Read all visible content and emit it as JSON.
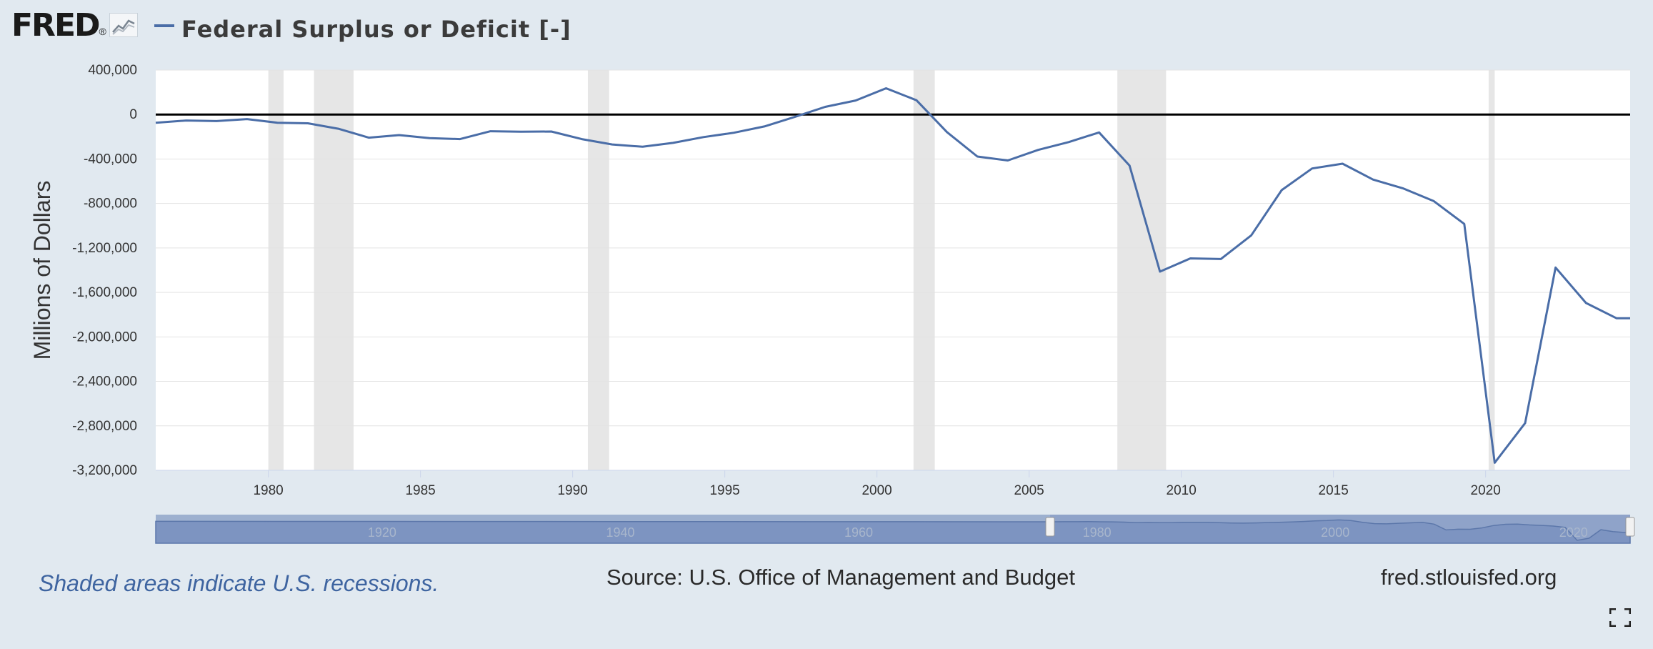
{
  "header": {
    "logo_text": "FRED",
    "logo_dot": "®",
    "series_title": "Federal Surplus or Deficit [-]"
  },
  "colors": {
    "background": "#e1e9f0",
    "plot_bg": "#ffffff",
    "line": "#4a6da7",
    "recession": "#e6e6e6",
    "navigator": "#8fa7cc",
    "zero_line": "#000000"
  },
  "footer": {
    "recession_note": "Shaded areas indicate U.S. recessions.",
    "source": "Source: U.S. Office of Management and Budget",
    "site": "fred.stlouisfed.org"
  },
  "icons": {
    "logo": "fred-graph-icon",
    "fullscreen": "fullscreen-icon"
  },
  "chart_data": {
    "type": "line",
    "title": "Federal Surplus or Deficit [-]",
    "xlabel": "",
    "ylabel": "Millions of Dollars",
    "xlim": [
      1976.3,
      2024.75
    ],
    "ylim": [
      -3200000,
      400000
    ],
    "yticks": [
      400000,
      0,
      -400000,
      -800000,
      -1200000,
      -1600000,
      -2000000,
      -2400000,
      -2800000,
      -3200000
    ],
    "ytick_labels": [
      "400,000",
      "0",
      "-400,000",
      "-800,000",
      "-1,200,000",
      "-1,600,000",
      "-2,000,000",
      "-2,400,000",
      "-2,800,000",
      "-3,200,000"
    ],
    "xticks": [
      1980,
      1985,
      1990,
      1995,
      2000,
      2005,
      2010,
      2015,
      2020
    ],
    "xtick_labels": [
      "1980",
      "1985",
      "1990",
      "1995",
      "2000",
      "2005",
      "2010",
      "2015",
      "2020"
    ],
    "zero_line": true,
    "grid": true,
    "recessions": [
      [
        1980.0,
        1980.5
      ],
      [
        1981.5,
        1982.8
      ],
      [
        1990.5,
        1991.2
      ],
      [
        2001.2,
        2001.9
      ],
      [
        2007.9,
        2009.5
      ],
      [
        2020.1,
        2020.3
      ]
    ],
    "series": [
      {
        "x": [
          1976.3,
          1977.3,
          1978.3,
          1979.3,
          1980.3,
          1981.3,
          1982.3,
          1983.3,
          1984.3,
          1985.3,
          1986.3,
          1987.3,
          1988.3,
          1989.3,
          1990.3,
          1991.3,
          1992.3,
          1993.3,
          1994.3,
          1995.3,
          1996.3,
          1997.3,
          1998.3,
          1999.3,
          2000.3,
          2001.3,
          2002.3,
          2003.3,
          2004.3,
          2005.3,
          2006.3,
          2007.3,
          2008.3,
          2009.3,
          2010.3,
          2011.3,
          2012.3,
          2013.3,
          2014.3,
          2015.3,
          2016.3,
          2017.3,
          2018.3,
          2019.3,
          2020.3,
          2021.3,
          2022.3,
          2023.3,
          2024.3,
          2024.75
        ],
        "values": [
          -74000,
          -54000,
          -59000,
          -41000,
          -74000,
          -79000,
          -128000,
          -208000,
          -185000,
          -212000,
          -221000,
          -150000,
          -155000,
          -153000,
          -221000,
          -269000,
          -290000,
          -255000,
          -203000,
          -164000,
          -107000,
          -22000,
          69000,
          126000,
          236000,
          128000,
          -158000,
          -378000,
          -413000,
          -318000,
          -248000,
          -161000,
          -459000,
          -1413000,
          -1294000,
          -1300000,
          -1087000,
          -680000,
          -485000,
          -442000,
          -585000,
          -665000,
          -779000,
          -984000,
          -3132000,
          -2775000,
          -1376000,
          -1695000,
          -1832000,
          -1832000
        ]
      }
    ],
    "navigator": {
      "tick_labels": [
        "1920",
        "1940",
        "1960",
        "1980",
        "2000",
        "2020"
      ]
    }
  }
}
